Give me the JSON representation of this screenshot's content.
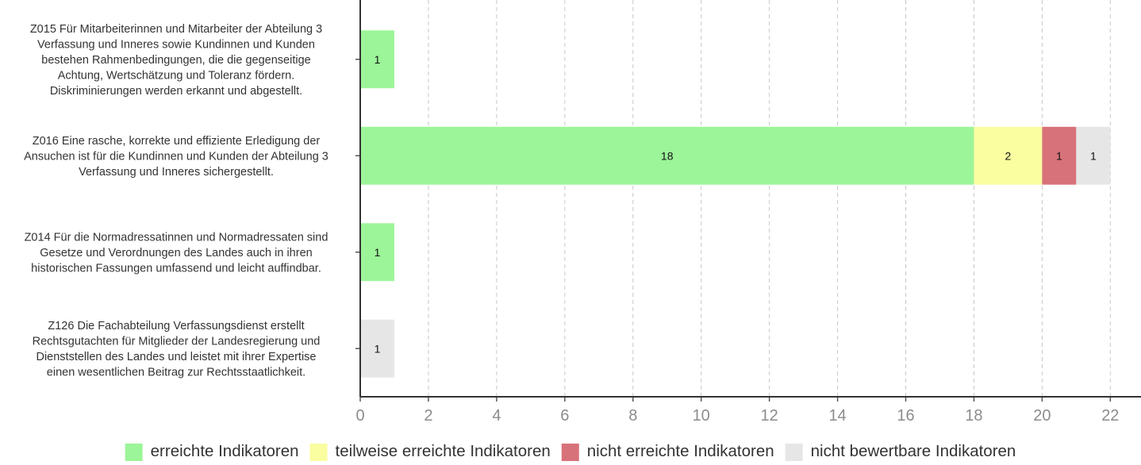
{
  "chart_data": {
    "type": "bar",
    "orientation": "horizontal",
    "stacked": true,
    "categories": [
      [
        "Z015 Für Mitarbeiterinnen und Mitarbeiter der Abteilung 3",
        "Verfassung und Inneres sowie Kundinnen und Kunden",
        "bestehen Rahmenbedingungen, die die gegenseitige",
        "Achtung, Wertschätzung und Toleranz fördern.",
        "Diskriminierungen werden erkannt und abgestellt."
      ],
      [
        "Z016 Eine rasche, korrekte und effiziente Erledigung der",
        "Ansuchen ist für die Kundinnen und Kunden der Abteilung 3",
        "Verfassung und Inneres sichergestellt."
      ],
      [
        "Z014 Für die Normadressatinnen und Normadressaten sind",
        "Gesetze und Verordnungen des Landes auch in ihren",
        "historischen Fassungen umfassend und leicht auffindbar."
      ],
      [
        "Z126 Die Fachabteilung Verfassungsdienst erstellt",
        "Rechtsgutachten für Mitglieder der Landesregierung und",
        "Dienststellen des Landes und leistet mit ihrer Expertise",
        "einen wesentlichen Beitrag zur Rechtsstaatlichkeit."
      ]
    ],
    "series": [
      {
        "name": "erreichte Indikatoren",
        "color": "#9cf598",
        "values": [
          1,
          18,
          1,
          0
        ]
      },
      {
        "name": "teilweise erreichte Indikatoren",
        "color": "#fafda0",
        "values": [
          0,
          2,
          0,
          0
        ]
      },
      {
        "name": "nicht erreichte Indikatoren",
        "color": "#d8727a",
        "values": [
          0,
          1,
          0,
          0
        ]
      },
      {
        "name": "nicht bewertbare Indikatoren",
        "color": "#e6e6e6",
        "values": [
          0,
          1,
          0,
          1
        ]
      }
    ],
    "xlim": [
      0,
      22.9
    ],
    "xticks": [
      "0",
      "2",
      "4",
      "6",
      "8",
      "10",
      "12",
      "14",
      "16",
      "18",
      "20",
      "22"
    ],
    "grid": "vertical dashed",
    "legend_position": "bottom"
  }
}
